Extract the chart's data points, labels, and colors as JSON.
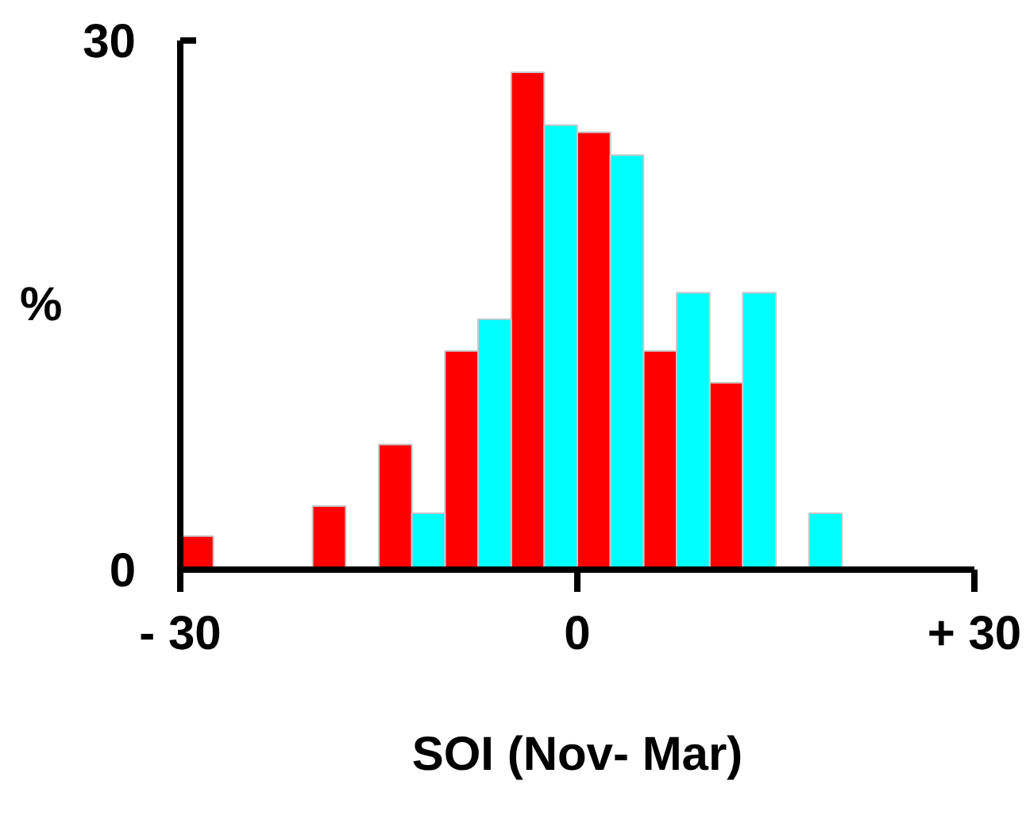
{
  "chart_data": {
    "type": "histogram",
    "xlabel": "SOI (Nov- Mar)",
    "ylabel": "%",
    "bins": [
      -30,
      -25,
      -20,
      -15,
      -10,
      -5,
      0,
      5,
      10,
      15,
      20,
      25,
      30
    ],
    "series": [
      {
        "color": "#ff0000",
        "values": [
          1.9,
          0,
          3.6,
          7.1,
          12.4,
          28.2,
          24.8,
          12.4,
          10.6,
          0,
          0,
          0
        ]
      },
      {
        "color": "#00ffff",
        "values": [
          0,
          0,
          0,
          3.2,
          14.2,
          25.2,
          23.5,
          15.7,
          15.7,
          3.2,
          0,
          0
        ]
      }
    ],
    "xlim": [
      -30,
      30
    ],
    "ylim": [
      0,
      30
    ],
    "xticks": [
      {
        "value": -30,
        "label": "- 30"
      },
      0,
      {
        "value": 30,
        "label": "+ 30"
      }
    ],
    "yticks": [
      0,
      30
    ],
    "grid": false
  }
}
